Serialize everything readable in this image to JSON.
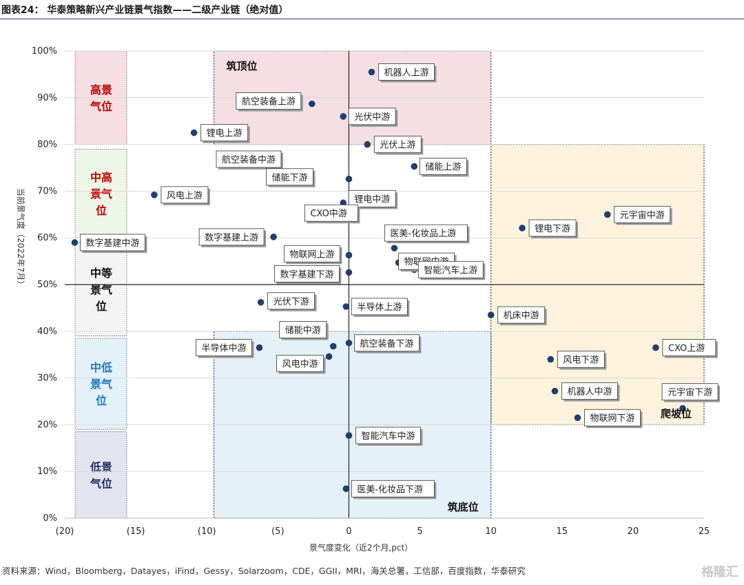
{
  "header": {
    "title": "图表24：  华泰策略新兴产业链景气指数——二级产业链（绝对值）"
  },
  "footer": {
    "source": "资料来源：Wind，Bloomberg，Datayes，iFind，Gessy，Solarzoom，CDE，GGII，MRI，海关总署，工信部，百度指数，华泰研究",
    "watermark": "格隆汇"
  },
  "chart_data": {
    "type": "scatter",
    "xlabel": "景气度变化（近2个月,pct）",
    "ylabel": "当前景气度（2022年7月）",
    "xlim": [
      -20,
      25
    ],
    "ylim": [
      0,
      100
    ],
    "x_ticks": [
      -20,
      -15,
      -10,
      -5,
      0,
      5,
      10,
      15,
      20,
      25
    ],
    "x_tick_labels": [
      "(20)",
      "(15)",
      "(10)",
      "(5)",
      "0",
      "5",
      "10",
      "15",
      "20",
      "25"
    ],
    "y_ticks": [
      0,
      10,
      20,
      30,
      40,
      50,
      60,
      70,
      80,
      90,
      100
    ],
    "y_tick_labels": [
      "0%",
      "10%",
      "20%",
      "30%",
      "40%",
      "50%",
      "60%",
      "70%",
      "80%",
      "90%",
      "100%"
    ],
    "grid": true,
    "colors": {
      "point": "#1f3f73",
      "high": "#c00000",
      "mid_high": "#c00000",
      "mid": "#000000",
      "mid_low": "#1f7ac7",
      "low": "#1f2f5f"
    },
    "levels": [
      {
        "label": "高景气位",
        "lines": [
          "高景",
          "气位"
        ],
        "from": 80,
        "to": 100,
        "fill": "#f5dfe2",
        "text_color": "#c00000"
      },
      {
        "label": "中高景气位",
        "lines": [
          "中高",
          "景气",
          "位"
        ],
        "from": 60,
        "to": 79,
        "fill": "#eef6e8",
        "text_color": "#c00000"
      },
      {
        "label": "中等景气位",
        "lines": [
          "中等",
          "景气",
          "位"
        ],
        "from": 39,
        "to": 59,
        "fill": "#f4f4f4",
        "text_color": "#111111"
      },
      {
        "label": "中低景气位",
        "lines": [
          "中低",
          "景气",
          "位"
        ],
        "from": 19,
        "to": 38.5,
        "fill": "#e4f1f8",
        "text_color": "#1f7ac7"
      },
      {
        "label": "低景气位",
        "lines": [
          "低景",
          "气位"
        ],
        "from": 0,
        "to": 18.5,
        "fill": "#e3e4ee",
        "text_color": "#1f2f5f"
      }
    ],
    "zones": [
      {
        "name": "筑顶位",
        "x": [
          -9.5,
          10
        ],
        "y": [
          80,
          100
        ],
        "fill": "#f5dfe2",
        "label_pos": "top-left"
      },
      {
        "name": "爬坡位",
        "x": [
          10,
          25
        ],
        "y": [
          20,
          80
        ],
        "fill": "#fdf3dd",
        "label_pos": "bottom-right"
      },
      {
        "name": "筑底位",
        "x": [
          -9.5,
          10
        ],
        "y": [
          0,
          40
        ],
        "fill": "#e4f1f8",
        "label_pos": "bottom-right"
      }
    ],
    "points": [
      {
        "name": "机器人上游",
        "x": 1.6,
        "y": 95.5
      },
      {
        "name": "航空装备上游",
        "x": -2.6,
        "y": 88.7
      },
      {
        "name": "光伏中游",
        "x": -0.4,
        "y": 86.0
      },
      {
        "name": "锂电上游",
        "x": -10.9,
        "y": 82.5
      },
      {
        "name": "光伏上游",
        "x": 1.3,
        "y": 80.0
      },
      {
        "name": "航空装备中游",
        "x": -4.0,
        "y": 73.6
      },
      {
        "name": "储能上游",
        "x": 4.6,
        "y": 75.3
      },
      {
        "name": "储能下游",
        "x": 0.0,
        "y": 72.6
      },
      {
        "name": "风电上游",
        "x": -13.7,
        "y": 69.2
      },
      {
        "name": "锂电中游",
        "x": -0.4,
        "y": 67.5
      },
      {
        "name": "CXO中游",
        "x": 0.0,
        "y": 65.6
      },
      {
        "name": "数字基建中游",
        "x": -19.3,
        "y": 59.0
      },
      {
        "name": "数字基建上游",
        "x": -5.3,
        "y": 60.2
      },
      {
        "name": "医美-化妆品上游",
        "x": 3.2,
        "y": 57.8
      },
      {
        "name": "物联网上游",
        "x": 0.0,
        "y": 56.3
      },
      {
        "name": "物联网中游",
        "x": 3.5,
        "y": 54.7
      },
      {
        "name": "智能汽车上游",
        "x": 4.6,
        "y": 53.2
      },
      {
        "name": "数字基建下游",
        "x": 0.0,
        "y": 52.6
      },
      {
        "name": "锂电下游",
        "x": 12.2,
        "y": 62.1
      },
      {
        "name": "元宇宙中游",
        "x": 18.2,
        "y": 65.0
      },
      {
        "name": "光伏下游",
        "x": -6.2,
        "y": 46.2
      },
      {
        "name": "半导体上游",
        "x": -0.2,
        "y": 45.3
      },
      {
        "name": "机床中游",
        "x": 10.0,
        "y": 43.5
      },
      {
        "name": "储能中游",
        "x": -1.1,
        "y": 36.8
      },
      {
        "name": "半导体中游",
        "x": -6.3,
        "y": 36.5
      },
      {
        "name": "航空装备下游",
        "x": 0.0,
        "y": 37.5
      },
      {
        "name": "风电中游",
        "x": -1.4,
        "y": 34.6
      },
      {
        "name": "CXO上游",
        "x": 21.6,
        "y": 36.5
      },
      {
        "name": "风电下游",
        "x": 14.2,
        "y": 34.0
      },
      {
        "name": "机器人中游",
        "x": 14.5,
        "y": 27.2
      },
      {
        "name": "元宇宙下游",
        "x": 23.5,
        "y": 23.5
      },
      {
        "name": "物联网下游",
        "x": 16.1,
        "y": 21.5
      },
      {
        "name": "智能汽车中游",
        "x": 0.0,
        "y": 17.7
      },
      {
        "name": "医美-化妆品下游",
        "x": -0.2,
        "y": 6.3
      }
    ]
  }
}
